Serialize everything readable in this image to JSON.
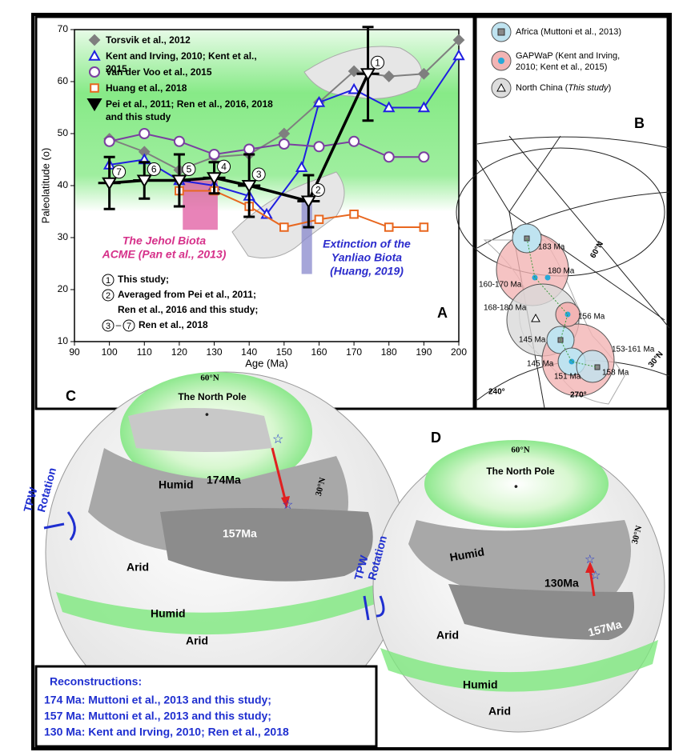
{
  "chart_data": {
    "type": "line",
    "panel_label": "A",
    "xlabel": "Age (Ma)",
    "ylabel": "Paleolatitude (o)",
    "xlim": [
      90,
      200
    ],
    "xticks": [
      90,
      100,
      110,
      120,
      130,
      140,
      150,
      160,
      170,
      180,
      190,
      200
    ],
    "ylim": [
      10,
      70
    ],
    "yticks": [
      10,
      20,
      30,
      40,
      50,
      60,
      70
    ],
    "legend_position": "upper left",
    "humid_band": {
      "range": [
        35,
        70
      ],
      "color": "#5fe35f"
    },
    "series": [
      {
        "name": "Torsvik et al., 2012",
        "color": "#7f7f7f",
        "marker": "diamond",
        "x": [
          100,
          110,
          120,
          130,
          140,
          150,
          160,
          170,
          180,
          190,
          200
        ],
        "values": [
          49,
          46.5,
          43,
          45.5,
          46,
          50,
          56,
          62,
          61,
          61.5,
          68
        ]
      },
      {
        "name": "Kent and Irving, 2010; Kent et al., 2015",
        "color": "#1f1fe0",
        "marker": "triangle-up",
        "x": [
          100,
          110,
          120,
          130,
          140,
          145,
          155,
          160,
          170,
          180,
          190,
          200
        ],
        "values": [
          44,
          45,
          41,
          40,
          38,
          34.5,
          43.5,
          56,
          58.5,
          55,
          55,
          65
        ]
      },
      {
        "name": "Van der Voo et al., 2015",
        "color": "#7a3fa0",
        "marker": "circle",
        "x": [
          100,
          110,
          120,
          130,
          140,
          150,
          160,
          170,
          180,
          190
        ],
        "values": [
          48.5,
          50,
          48.5,
          46,
          47,
          48,
          47.5,
          48.5,
          45.5,
          45.5
        ]
      },
      {
        "name": "Huang et al., 2018",
        "color": "#e8671f",
        "marker": "square",
        "x": [
          120,
          130,
          140,
          150,
          160,
          170,
          180,
          190
        ],
        "values": [
          39,
          39,
          36,
          32,
          33.5,
          34.5,
          32,
          32
        ]
      },
      {
        "name": "Pei et al., 2011; Ren et al., 2016, 2018 and this study",
        "color": "#000000",
        "marker": "triangle-down",
        "x": [
          100,
          110,
          120,
          130,
          140,
          157,
          174
        ],
        "values": [
          40.5,
          41,
          41,
          41.5,
          40,
          37,
          61.5
        ],
        "errors": [
          5,
          3.5,
          5,
          3,
          6,
          5,
          9
        ],
        "point_labels": [
          "7",
          "6",
          "5",
          "4",
          "3",
          "2",
          "1"
        ]
      }
    ],
    "spans": [
      {
        "lines": [
          "The Jehol Biota",
          "ACME (Pan et al., 2013)"
        ],
        "x": [
          121,
          131
        ],
        "y": [
          31.5,
          41
        ],
        "color": "#e05aa0",
        "text_color": "#d6318a"
      },
      {
        "lines": [
          "Extinction of the",
          "Yanliao Biota",
          "(Huang, 2019)"
        ],
        "x": [
          155,
          158
        ],
        "y": [
          23,
          37
        ],
        "color": "#8888cc",
        "text_color": "#2b2bcc"
      }
    ],
    "notes": [
      {
        "markers": [
          "1"
        ],
        "lines": [
          "This study;"
        ]
      },
      {
        "markers": [
          "2"
        ],
        "lines": [
          "Averaged from Pei et al., 2011;",
          "Ren et al., 2016 and this study;"
        ]
      },
      {
        "markers": [
          "3",
          "7"
        ],
        "dash": "–",
        "lines": [
          "Ren et al., 2018"
        ]
      }
    ]
  },
  "panel_b": {
    "label": "B",
    "legend": [
      "Africa (Muttoni et al., 2013)",
      "GAPWaP (Kent and Irving,",
      "2010; Kent et al., 2015)",
      "North China (",
      "This study",
      ")"
    ],
    "poles": [
      "183 Ma",
      "180 Ma",
      "160-170 Ma",
      "168-180 Ma",
      "156 Ma",
      "145 Ma",
      "145 Ma",
      "151 Ma",
      "153-161 Ma",
      "158 Ma"
    ],
    "grid_labels": [
      "60°N",
      "30°N",
      "240°",
      "270°"
    ]
  },
  "panel_c": {
    "label": "C",
    "texts": [
      "60°N",
      "The North Pole",
      "Humid",
      "174Ma",
      "157Ma",
      "30°N",
      "TPW",
      "Rotation",
      "Arid",
      "Humid",
      "Arid"
    ]
  },
  "panel_d": {
    "label": "D",
    "texts": [
      "60°N",
      "The North Pole",
      "Humid",
      "130Ma",
      "157Ma",
      "30°N",
      "TPW",
      "Rotation",
      "Arid",
      "Humid",
      "Arid"
    ]
  },
  "reconstructions": {
    "title": "Reconstructions:",
    "lines": [
      "174 Ma: Muttoni et al., 2013 and this study;",
      "157 Ma: Muttoni et al., 2013 and this study;",
      "130 Ma: Kent and Irving, 2010; Ren et al., 2018"
    ]
  }
}
